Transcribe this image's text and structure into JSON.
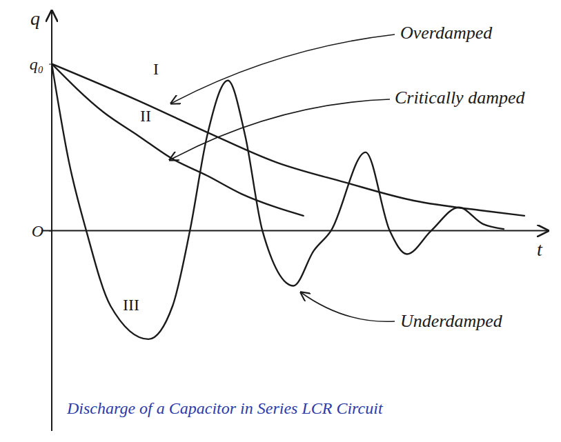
{
  "chart_data": {
    "type": "line",
    "title": "Discharge of a Capacitor in Series LCR Circuit",
    "x_label": "t",
    "y_label": "q",
    "xlim": [
      0,
      10
    ],
    "ylim": [
      -1.2,
      1.3
    ],
    "yticks": [
      {
        "value": 0,
        "label": "O"
      },
      {
        "value": 1,
        "label": "q₀"
      }
    ],
    "tick_labels": "y",
    "grid": false,
    "series": [
      {
        "name": "Overdamped",
        "color": "#1a1a1a",
        "line_style": "solid",
        "x": [
          0,
          1.75,
          3.15,
          4.55,
          5.94,
          7.34,
          8.74,
          9.58
        ],
        "values": [
          1,
          0.78,
          0.59,
          0.41,
          0.29,
          0.18,
          0.12,
          0.09
        ]
      },
      {
        "name": "Critically damped",
        "color": "#1a1a1a",
        "line_style": "solid",
        "x": [
          0,
          1.05,
          1.75,
          2.45,
          3.15,
          3.85,
          4.55,
          5.1
        ],
        "values": [
          1,
          0.71,
          0.57,
          0.43,
          0.33,
          0.22,
          0.14,
          0.09
        ]
      },
      {
        "name": "Underdamped",
        "color": "#1a1a1a",
        "line_style": "solid",
        "x": [
          0,
          0.35,
          0.7,
          1.19,
          1.96,
          2.45,
          2.8,
          3.15,
          3.57,
          3.92,
          4.27,
          4.9,
          5.31,
          5.66,
          6.36,
          6.85,
          7.2,
          7.69,
          8.25,
          8.74,
          9.16
        ],
        "values": [
          1,
          0.41,
          0,
          -0.45,
          -0.65,
          -0.45,
          0,
          0.57,
          0.9,
          0.57,
          0,
          -0.33,
          -0.12,
          0,
          0.47,
          0,
          -0.14,
          0,
          0.14,
          0.04,
          0.01
        ]
      }
    ],
    "annotations": [
      {
        "text": "I",
        "series": "Overdamped"
      },
      {
        "text": "II",
        "series": "Critically damped"
      },
      {
        "text": "III",
        "series": "Underdamped"
      }
    ]
  }
}
